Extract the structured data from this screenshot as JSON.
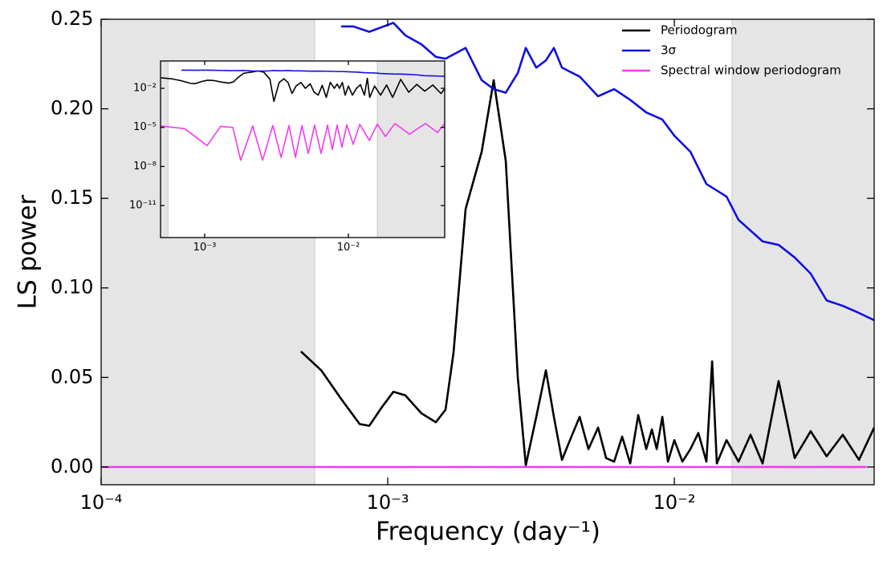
{
  "chart_data": {
    "type": "line",
    "xlabel": "Frequency (day⁻¹)",
    "ylabel": "LS power",
    "xscale": "log",
    "xlim": [
      0.0001,
      0.0498
    ],
    "ylim": [
      -0.0099,
      0.25
    ],
    "xticks": [
      {
        "value": 0.0001,
        "label": "10⁻⁴"
      },
      {
        "value": 0.001,
        "label": "10⁻³"
      },
      {
        "value": 0.01,
        "label": "10⁻²"
      }
    ],
    "yticks": [
      {
        "value": 0,
        "label": "0.00"
      },
      {
        "value": 0.05,
        "label": "0.05"
      },
      {
        "value": 0.1,
        "label": "0.10"
      },
      {
        "value": 0.15,
        "label": "0.15"
      },
      {
        "value": 0.2,
        "label": "0.20"
      },
      {
        "value": 0.25,
        "label": "0.25"
      }
    ],
    "shaded_regions": [
      [
        0.0001,
        0.000556
      ],
      [
        0.0159,
        0.0498
      ]
    ],
    "legend": "upper right",
    "series": [
      {
        "name": "Periodogram",
        "color": "#000000",
        "x": [
          0.000498,
          0.000586,
          0.000688,
          0.000798,
          0.000862,
          0.00095,
          0.001046,
          0.001152,
          0.001311,
          0.001472,
          0.001591,
          0.001697,
          0.001869,
          0.002127,
          0.002343,
          0.002581,
          0.002843,
          0.003032,
          0.003298,
          0.003563,
          0.0038,
          0.004054,
          0.004324,
          0.004673,
          0.005016,
          0.00542,
          0.00578,
          0.006165,
          0.006576,
          0.007015,
          0.007482,
          0.00798,
          0.00835,
          0.00868,
          0.00908,
          0.0095,
          0.01,
          0.01067,
          0.01138,
          0.01213,
          0.01294,
          0.01355,
          0.01407,
          0.01521,
          0.01675,
          0.01845,
          0.02032,
          0.02312,
          0.0263,
          0.0299,
          0.034,
          0.0387,
          0.0441,
          0.0498
        ],
        "values": [
          0.0645,
          0.054,
          0.038,
          0.024,
          0.023,
          0.033,
          0.042,
          0.04,
          0.03,
          0.025,
          0.032,
          0.064,
          0.144,
          0.176,
          0.216,
          0.171,
          0.05,
          0.001,
          0.028,
          0.054,
          0.028,
          0.004,
          0.015,
          0.028,
          0.01,
          0.022,
          0.005,
          0.003,
          0.017,
          0.002,
          0.029,
          0.01,
          0.021,
          0.01,
          0.028,
          0.003,
          0.015,
          0.003,
          0.01,
          0.019,
          0.003,
          0.059,
          0.002,
          0.015,
          0.003,
          0.018,
          0.002,
          0.048,
          0.005,
          0.02,
          0.006,
          0.018,
          0.004,
          0.022
        ]
      },
      {
        "name": "3σ",
        "color": "#1010e0",
        "x": [
          0.000688,
          0.000758,
          0.000862,
          0.001046,
          0.001152,
          0.001311,
          0.001472,
          0.001591,
          0.001869,
          0.002127,
          0.002343,
          0.002581,
          0.002843,
          0.003032,
          0.003298,
          0.003563,
          0.0038,
          0.004054,
          0.004673,
          0.00542,
          0.006165,
          0.007015,
          0.00798,
          0.00908,
          0.01,
          0.01138,
          0.01294,
          0.01521,
          0.01675,
          0.02032,
          0.02312,
          0.0263,
          0.0299,
          0.034,
          0.0387,
          0.0441,
          0.0498
        ],
        "values": [
          0.246,
          0.246,
          0.243,
          0.248,
          0.241,
          0.236,
          0.229,
          0.228,
          0.234,
          0.216,
          0.211,
          0.209,
          0.22,
          0.234,
          0.223,
          0.227,
          0.234,
          0.223,
          0.218,
          0.207,
          0.211,
          0.205,
          0.198,
          0.194,
          0.185,
          0.176,
          0.158,
          0.151,
          0.138,
          0.126,
          0.124,
          0.117,
          0.108,
          0.093,
          0.09,
          0.086,
          0.082
        ]
      },
      {
        "name": "Spectral window periodogram",
        "color": "#f03cf0",
        "x": [
          0.0001,
          0.000493,
          0.000725,
          0.00104,
          0.00129,
          0.00157,
          0.00178,
          0.00216,
          0.00253,
          0.00298,
          0.0034,
          0.00386,
          0.00428,
          0.00475,
          0.00526,
          0.00582,
          0.00646,
          0.00716,
          0.00773,
          0.00835,
          0.00902,
          0.00975,
          0.0108,
          0.012,
          0.014,
          0.0159,
          0.0181,
          0.0211,
          0.0266,
          0.0344,
          0.0417,
          0.0468
        ],
        "values": [
          1.3e-05,
          1.3e-05,
          8e-06,
          4e-07,
          1.2e-05,
          1e-05,
          3e-08,
          1.3e-05,
          3e-08,
          1.4e-05,
          5e-08,
          1.4e-05,
          5e-08,
          1.4e-05,
          1e-07,
          1.5e-05,
          1e-07,
          1.5e-05,
          2e-07,
          1.5e-05,
          3e-07,
          1.6e-05,
          5e-07,
          1.7e-05,
          1e-06,
          1.8e-05,
          2e-06,
          2e-05,
          3e-06,
          2e-05,
          4e-06,
          2e-05
        ]
      }
    ],
    "inset": {
      "xscale": "log",
      "yscale": "log",
      "xlim": [
        0.000493,
        0.0468
      ],
      "ylim": [
        3.5e-14,
        1.25
      ],
      "xticks": [
        {
          "value": 0.001,
          "label": "10⁻³"
        },
        {
          "value": 0.01,
          "label": "10⁻²"
        }
      ],
      "yticks": [
        {
          "value": 0.01,
          "label": "10⁻²"
        },
        {
          "value": 1e-05,
          "label": "10⁻⁵"
        },
        {
          "value": 1e-08,
          "label": "10⁻⁸"
        },
        {
          "value": 1e-11,
          "label": "10⁻¹¹"
        }
      ]
    }
  }
}
